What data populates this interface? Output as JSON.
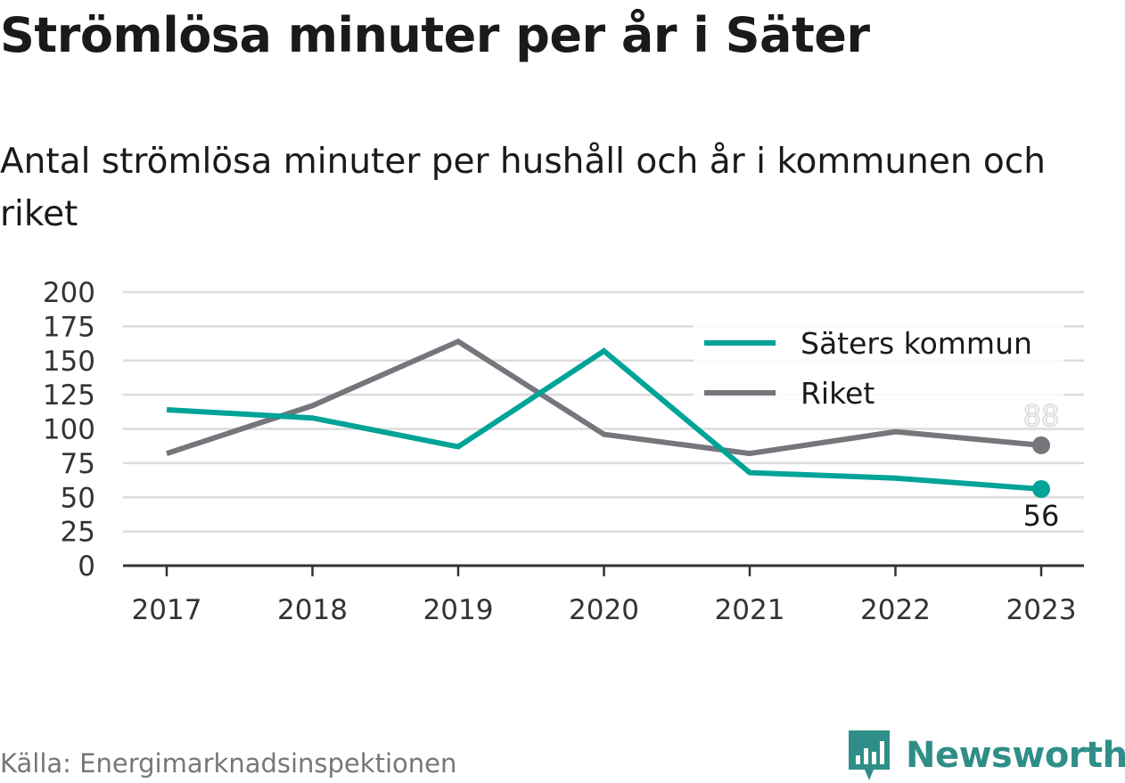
{
  "title": "Strömlösa minuter per år i Säter",
  "subtitle": "Antal strömlösa minuter per hushåll och år i kommunen och riket",
  "source": "Källa: Energimarknadsinspektionen",
  "brand": "Newsworthy",
  "colors": {
    "saters_kommun": "#00a398",
    "riket": "#75757c",
    "gridline": "#dcdcdc",
    "axis": "#333333",
    "brand": "#2f8f88"
  },
  "chart_data": {
    "type": "line",
    "x": [
      "2017",
      "2018",
      "2019",
      "2020",
      "2021",
      "2022",
      "2023"
    ],
    "ylim": [
      0,
      200
    ],
    "yticks": [
      "0",
      "25",
      "50",
      "75",
      "100",
      "125",
      "150",
      "175",
      "200"
    ],
    "grid": true,
    "legend_position": "top-right",
    "series": [
      {
        "name": "Säters kommun",
        "values": [
          114,
          108,
          87,
          157,
          68,
          64,
          56
        ],
        "end_label": "56"
      },
      {
        "name": "Riket",
        "values": [
          82,
          117,
          164,
          96,
          82,
          98,
          88
        ],
        "end_label": "88"
      }
    ]
  }
}
